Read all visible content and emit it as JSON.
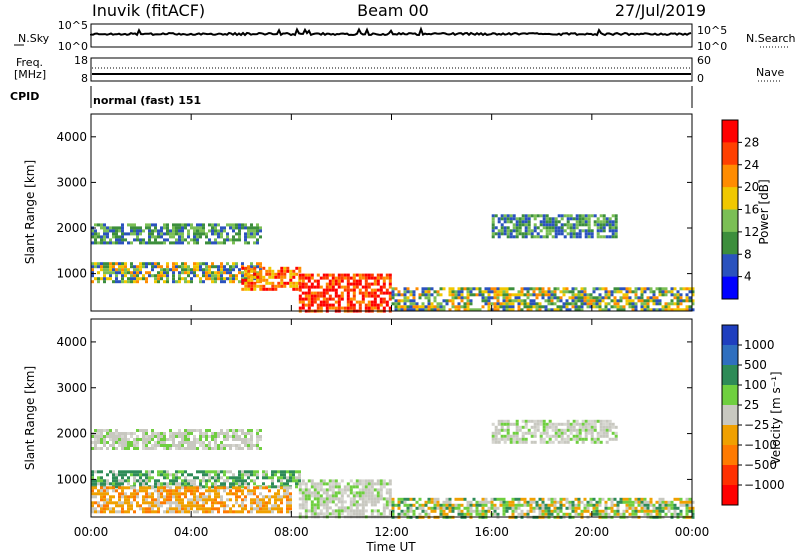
{
  "header": {
    "station": "Inuvik (fitACF)",
    "beam": "Beam 00",
    "date": "27/Jul/2019"
  },
  "top_panels": {
    "nsky_label": "N.Sky",
    "nsky_ticks": [
      "10^5",
      "10^0"
    ],
    "nsearch_label": "N.Search",
    "nsearch_ticks": [
      "10^5",
      "10^0"
    ],
    "freq_label": "Freq.",
    "freq_unit": "[MHz]",
    "freq_ticks": [
      "18",
      "8"
    ],
    "nave_label": "Nave",
    "nave_ticks": [
      "60",
      "0"
    ],
    "cpid_label": "CPID",
    "cpid_text": "normal (fast) 151"
  },
  "colors": {
    "power_scale": [
      "#0000ff",
      "#2a52be",
      "#3c8e3c",
      "#7bbf55",
      "#f0c800",
      "#ff8c00",
      "#ff4000",
      "#ff0000"
    ],
    "velocity_scale": [
      "#1f3fbf",
      "#2f6fbf",
      "#2e8b57",
      "#6fcf3f",
      "#c8c8c0",
      "#f0a000",
      "#ff7a00",
      "#ff3000",
      "#ff0000"
    ]
  },
  "chart_data": [
    {
      "type": "heatmap",
      "quantity": "Power",
      "ylabel": "Slant Range [km]",
      "ylim": [
        180,
        4500
      ],
      "yticks": [
        "1000",
        "2000",
        "3000",
        "4000"
      ],
      "ytick_values": [
        1000,
        2000,
        3000,
        4000
      ],
      "xlim": [
        0,
        24
      ],
      "colorbar_label": "Power [dB]",
      "colorbar_ticks": [
        "4",
        "8",
        "12",
        "16",
        "20",
        "24",
        "28"
      ],
      "colorbar_range": [
        0,
        32
      ],
      "regions": [
        {
          "t0": 0.0,
          "t1": 6.8,
          "r0": 850,
          "r1": 1250,
          "level": "mid"
        },
        {
          "t0": 6.0,
          "t1": 8.3,
          "r0": 650,
          "r1": 1150,
          "level": "high"
        },
        {
          "t0": 8.3,
          "t1": 12.0,
          "r0": 200,
          "r1": 1000,
          "level": "max"
        },
        {
          "t0": 0.0,
          "t1": 6.8,
          "r0": 1650,
          "r1": 2100,
          "level": "low"
        },
        {
          "t0": 12.0,
          "t1": 24.0,
          "r0": 200,
          "r1": 700,
          "level": "mid"
        },
        {
          "t0": 16.0,
          "t1": 21.0,
          "r0": 1800,
          "r1": 2300,
          "level": "low"
        }
      ]
    },
    {
      "type": "heatmap",
      "quantity": "Velocity",
      "ylabel": "Slant Range [km]",
      "xlabel": "Time UT",
      "ylim": [
        180,
        4500
      ],
      "yticks": [
        "1000",
        "2000",
        "3000",
        "4000"
      ],
      "ytick_values": [
        1000,
        2000,
        3000,
        4000
      ],
      "xlim": [
        0,
        24
      ],
      "xticks": [
        "00:00",
        "04:00",
        "08:00",
        "12:00",
        "16:00",
        "20:00",
        "00:00"
      ],
      "xtick_values": [
        0,
        4,
        8,
        12,
        16,
        20,
        24
      ],
      "colorbar_label": "Velocity [m s⁻¹]",
      "colorbar_ticks": [
        "1000",
        "500",
        "100",
        "25",
        "−25",
        "−100",
        "−500",
        "−1000"
      ],
      "regions": [
        {
          "t0": 0.0,
          "t1": 8.3,
          "r0": 850,
          "r1": 1200,
          "level": "green"
        },
        {
          "t0": 0.0,
          "t1": 8.0,
          "r0": 300,
          "r1": 850,
          "level": "orange"
        },
        {
          "t0": 8.3,
          "t1": 12.0,
          "r0": 200,
          "r1": 1000,
          "level": "grey"
        },
        {
          "t0": 0.0,
          "t1": 6.8,
          "r0": 1650,
          "r1": 2100,
          "level": "grey"
        },
        {
          "t0": 12.0,
          "t1": 24.0,
          "r0": 200,
          "r1": 600,
          "level": "lightgreen"
        },
        {
          "t0": 16.0,
          "t1": 21.0,
          "r0": 1800,
          "r1": 2300,
          "level": "grey"
        }
      ]
    }
  ]
}
